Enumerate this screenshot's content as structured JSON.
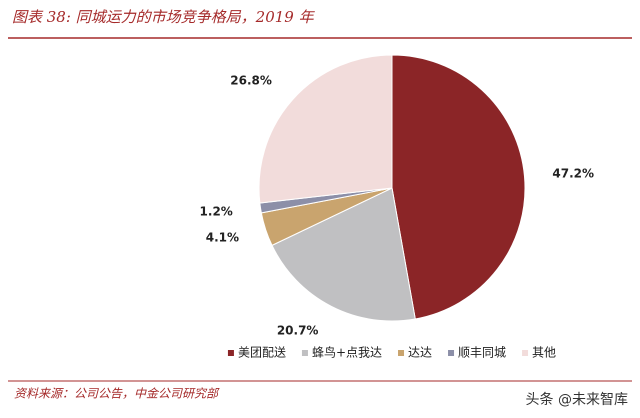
{
  "chart_data": {
    "type": "pie",
    "title": "图表 38: 同城运力的市场竞争格局，2019 年",
    "categories": [
      "美团配送",
      "蜂鸟+点我达",
      "达达",
      "顺丰同城",
      "其他"
    ],
    "values": [
      47.2,
      20.7,
      4.1,
      1.2,
      26.8
    ],
    "value_labels": [
      "47.2%",
      "20.7%",
      "4.1%",
      "1.2%",
      "26.8%"
    ],
    "colors": [
      "#8B2527",
      "#C0C0C2",
      "#C9A46E",
      "#8C8FA8",
      "#F2DCDB"
    ],
    "legend": "bottom",
    "source": "资料来源：公司公告，中金公司研究部",
    "watermark": "头条 @未来智库"
  }
}
